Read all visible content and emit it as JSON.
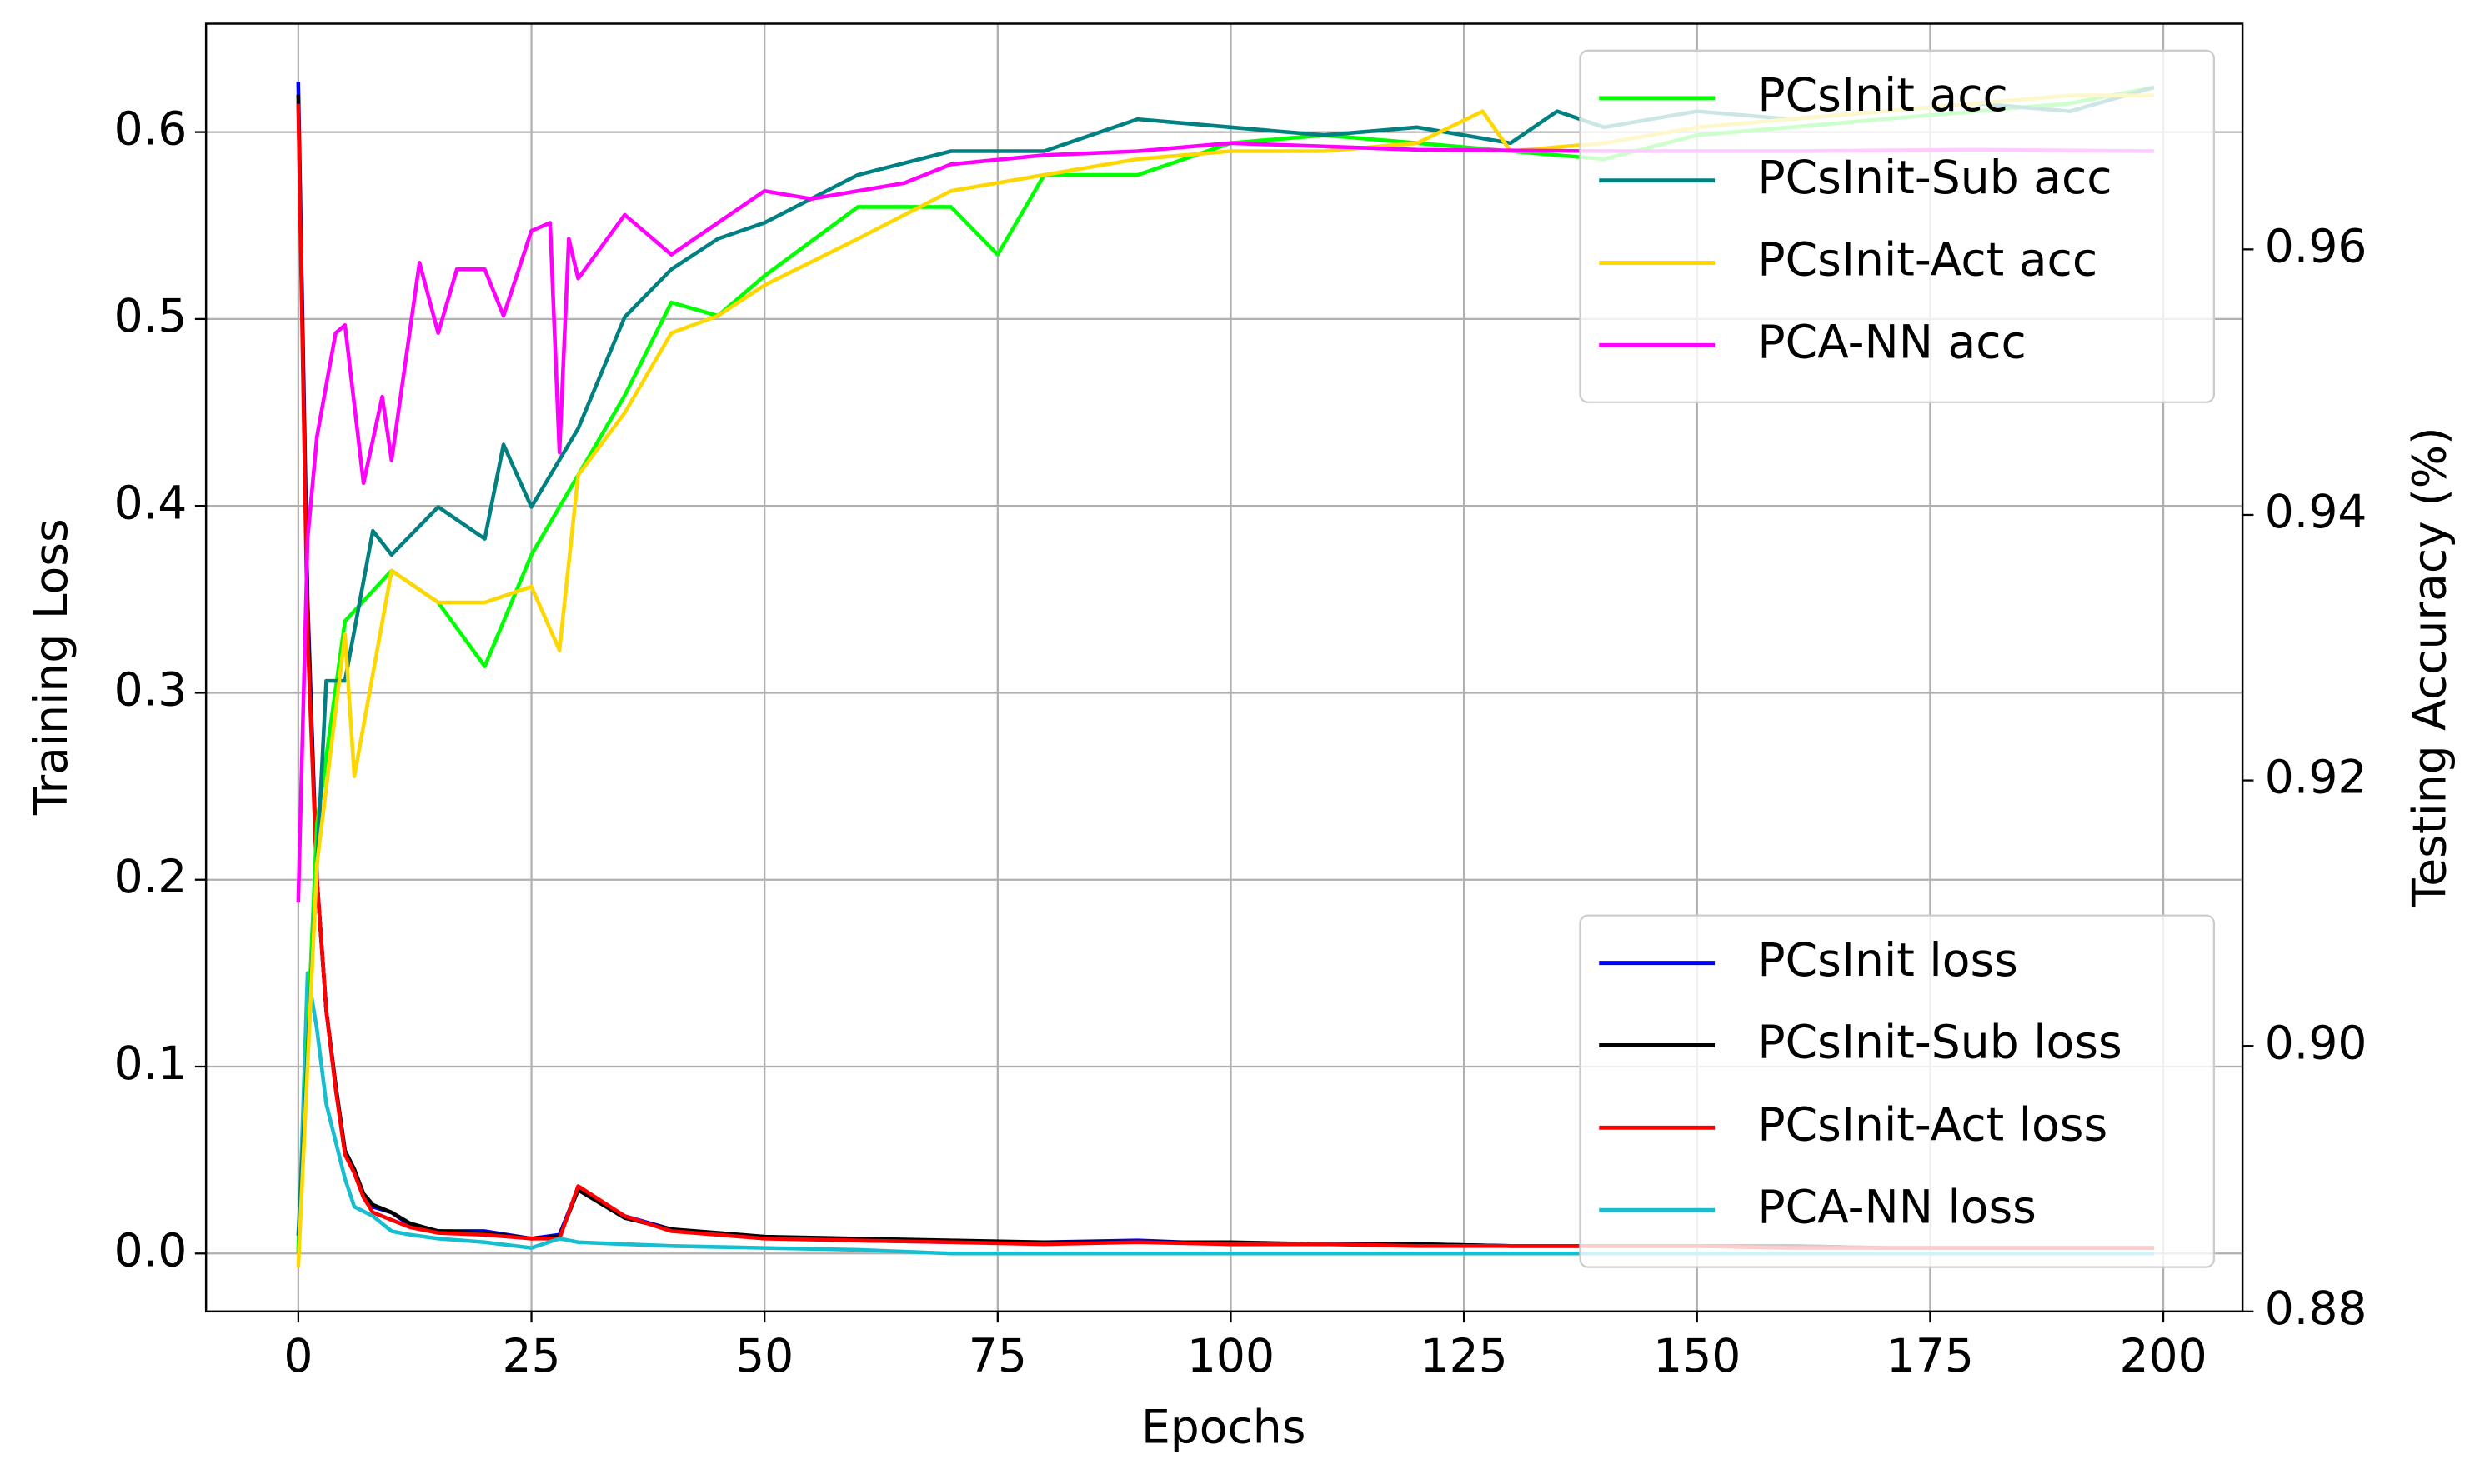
{
  "chart_data": {
    "type": "line",
    "xlabel": "Epochs",
    "ylabel": "Training Loss",
    "y2label": "Testing Accuracy (%)",
    "xlim": [
      -9.9,
      208.5
    ],
    "xticks": [
      0,
      25,
      50,
      75,
      100,
      125,
      150,
      175,
      200
    ],
    "ylim": [
      -0.031,
      0.658
    ],
    "yticks": [
      {
        "value": 0,
        "label": "0.0"
      },
      0.1,
      0.2,
      0.3,
      0.4,
      0.5,
      0.6
    ],
    "y2lim": [
      0.88,
      0.977
    ],
    "y2ticks": [
      0.88,
      {
        "value": 0.9,
        "label": "0.90"
      },
      0.92,
      0.94,
      0.96
    ],
    "grid": true,
    "legend": {
      "y": "lower right",
      "y2": "upper right"
    },
    "series": [
      {
        "name": "PCsInit loss",
        "color": "#0000ff",
        "axis": "y",
        "x": [
          0,
          1,
          2,
          3,
          4,
          5,
          6,
          7,
          8,
          10,
          12,
          15,
          20,
          25,
          28,
          30,
          35,
          40,
          45,
          50,
          60,
          70,
          80,
          90,
          100,
          110,
          120,
          130,
          140,
          150,
          160,
          170,
          180,
          190,
          199
        ],
        "values": [
          0.627,
          0.35,
          0.2,
          0.13,
          0.09,
          0.055,
          0.045,
          0.03,
          0.025,
          0.022,
          0.015,
          0.012,
          0.012,
          0.008,
          0.01,
          0.035,
          0.02,
          0.013,
          0.01,
          0.009,
          0.007,
          0.006,
          0.006,
          0.007,
          0.005,
          0.005,
          0.005,
          0.004,
          0.004,
          0.004,
          0.004,
          0.003,
          0.003,
          0.003,
          0.003
        ]
      },
      {
        "name": "PCsInit-Sub loss",
        "color": "#000000",
        "axis": "y",
        "x": [
          0,
          1,
          2,
          3,
          4,
          5,
          6,
          7,
          8,
          10,
          12,
          15,
          20,
          25,
          28,
          30,
          35,
          40,
          45,
          50,
          60,
          70,
          80,
          90,
          100,
          110,
          120,
          130,
          140,
          150,
          160,
          170,
          180,
          190,
          199
        ],
        "values": [
          0.62,
          0.34,
          0.2,
          0.13,
          0.09,
          0.055,
          0.045,
          0.032,
          0.026,
          0.022,
          0.016,
          0.012,
          0.011,
          0.008,
          0.009,
          0.034,
          0.019,
          0.013,
          0.011,
          0.009,
          0.008,
          0.007,
          0.006,
          0.006,
          0.006,
          0.005,
          0.005,
          0.004,
          0.004,
          0.004,
          0.004,
          0.003,
          0.003,
          0.003,
          0.003
        ]
      },
      {
        "name": "PCsInit-Act loss",
        "color": "#ff0000",
        "axis": "y",
        "x": [
          0,
          1,
          2,
          3,
          4,
          5,
          6,
          7,
          8,
          10,
          12,
          15,
          20,
          25,
          28,
          30,
          35,
          40,
          45,
          50,
          60,
          70,
          80,
          90,
          100,
          110,
          120,
          130,
          140,
          150,
          160,
          170,
          180,
          190,
          199
        ],
        "values": [
          0.615,
          0.33,
          0.2,
          0.13,
          0.088,
          0.053,
          0.043,
          0.03,
          0.022,
          0.018,
          0.014,
          0.011,
          0.01,
          0.008,
          0.008,
          0.036,
          0.02,
          0.012,
          0.01,
          0.008,
          0.007,
          0.006,
          0.005,
          0.006,
          0.005,
          0.005,
          0.004,
          0.004,
          0.004,
          0.004,
          0.003,
          0.003,
          0.003,
          0.003,
          0.003
        ]
      },
      {
        "name": "PCA-NN loss",
        "color": "#17becf",
        "axis": "y",
        "x": [
          0,
          1,
          2,
          3,
          4,
          5,
          6,
          8,
          10,
          12,
          15,
          20,
          25,
          28,
          30,
          35,
          40,
          50,
          60,
          70,
          100,
          150,
          199
        ],
        "values": [
          0.0,
          0.15,
          0.12,
          0.08,
          0.06,
          0.04,
          0.025,
          0.02,
          0.012,
          0.01,
          0.008,
          0.006,
          0.003,
          0.008,
          0.006,
          0.005,
          0.004,
          0.003,
          0.002,
          0.0,
          0.0,
          0.0,
          0.0
        ]
      },
      {
        "name": "PCsInit acc",
        "color": "#00ff00",
        "axis": "y2",
        "x": [
          0,
          2,
          5,
          10,
          15,
          20,
          25,
          30,
          35,
          40,
          45,
          50,
          60,
          70,
          75,
          80,
          90,
          100,
          110,
          120,
          130,
          140,
          150,
          160,
          170,
          180,
          190,
          199
        ],
        "values": [
          0.8845,
          0.9167,
          0.932,
          0.9358,
          0.9334,
          0.9286,
          0.937,
          0.943,
          0.949,
          0.956,
          0.955,
          0.958,
          0.9632,
          0.9632,
          0.9596,
          0.9656,
          0.9656,
          0.968,
          0.9686,
          0.968,
          0.9674,
          0.9668,
          0.9686,
          0.9692,
          0.9698,
          0.9704,
          0.971,
          0.9722
        ]
      },
      {
        "name": "PCsInit-Sub acc",
        "color": "#008080",
        "axis": "y2",
        "x": [
          0,
          3,
          5,
          8,
          10,
          15,
          20,
          22,
          25,
          30,
          35,
          40,
          45,
          50,
          60,
          70,
          80,
          90,
          100,
          110,
          120,
          130,
          135,
          140,
          150,
          160,
          170,
          180,
          190,
          199
        ],
        "values": [
          0.8857,
          0.9275,
          0.9275,
          0.9388,
          0.937,
          0.9406,
          0.9382,
          0.9453,
          0.9406,
          0.9465,
          0.9549,
          0.9585,
          0.9608,
          0.962,
          0.9656,
          0.9674,
          0.9674,
          0.9698,
          0.9692,
          0.9686,
          0.9692,
          0.968,
          0.9704,
          0.9692,
          0.9704,
          0.9698,
          0.9704,
          0.971,
          0.9704,
          0.9722
        ]
      },
      {
        "name": "PCsInit-Act acc",
        "color": "#ffd700",
        "axis": "y2",
        "x": [
          0,
          2,
          5,
          6,
          10,
          15,
          20,
          25,
          28,
          30,
          35,
          40,
          45,
          50,
          60,
          70,
          80,
          90,
          100,
          110,
          120,
          127,
          130,
          140,
          150,
          160,
          170,
          180,
          190,
          199
        ],
        "values": [
          0.8833,
          0.9137,
          0.931,
          0.9203,
          0.9358,
          0.9334,
          0.9334,
          0.9346,
          0.9298,
          0.943,
          0.9477,
          0.9537,
          0.955,
          0.9573,
          0.9608,
          0.9644,
          0.9656,
          0.9668,
          0.9674,
          0.9674,
          0.968,
          0.9704,
          0.9674,
          0.968,
          0.9692,
          0.9698,
          0.9704,
          0.971,
          0.9716,
          0.9716
        ]
      },
      {
        "name": "PCA-NN acc",
        "color": "#ff00ff",
        "axis": "y2",
        "x": [
          0,
          1,
          2,
          4,
          5,
          7,
          9,
          10,
          13,
          15,
          17,
          20,
          22,
          25,
          27,
          28,
          29,
          30,
          35,
          40,
          45,
          50,
          55,
          60,
          65,
          70,
          80,
          90,
          100,
          120,
          140,
          160,
          180,
          199
        ],
        "values": [
          0.9108,
          0.9382,
          0.9459,
          0.9537,
          0.9543,
          0.9424,
          0.9489,
          0.9441,
          0.959,
          0.9537,
          0.9585,
          0.9585,
          0.955,
          0.9614,
          0.962,
          0.9447,
          0.9608,
          0.9578,
          0.9626,
          0.9596,
          0.962,
          0.9644,
          0.9638,
          0.9644,
          0.965,
          0.9664,
          0.9671,
          0.9674,
          0.968,
          0.9675,
          0.9674,
          0.9674,
          0.9675,
          0.9674
        ]
      }
    ]
  }
}
